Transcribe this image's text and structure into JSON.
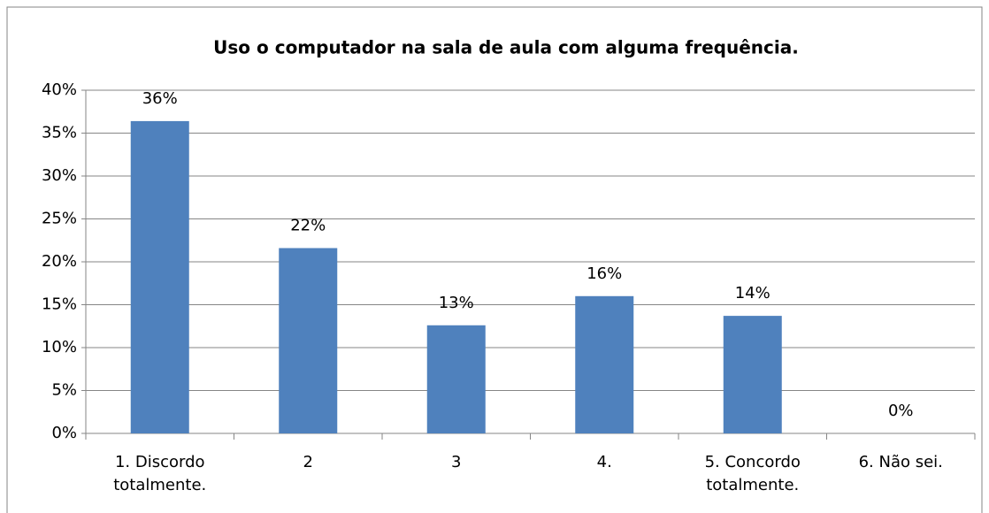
{
  "chart_data": {
    "type": "bar",
    "title": "Uso o computador na sala de aula com alguma frequência.",
    "categories": [
      "1. Discordo totalmente.",
      "2",
      "3",
      "4.",
      "5. Concordo totalmente.",
      "6. Não sei."
    ],
    "values": [
      36.4,
      21.6,
      12.6,
      16.0,
      13.7,
      0
    ],
    "value_labels": [
      "36%",
      "22%",
      "13%",
      "16%",
      "14%",
      "0%"
    ],
    "color": "#4f81bd",
    "ylim": [
      0,
      40
    ],
    "yticks": [
      {
        "value": 0,
        "label": "0%"
      },
      {
        "value": 5,
        "label": "5%"
      },
      {
        "value": 10,
        "label": "10%"
      },
      {
        "value": 15,
        "label": "15%"
      },
      {
        "value": 20,
        "label": "20%"
      },
      {
        "value": 25,
        "label": "25%"
      },
      {
        "value": 30,
        "label": "30%"
      },
      {
        "value": 35,
        "label": "35%"
      },
      {
        "value": 40,
        "label": "40%"
      }
    ],
    "grid": true
  }
}
